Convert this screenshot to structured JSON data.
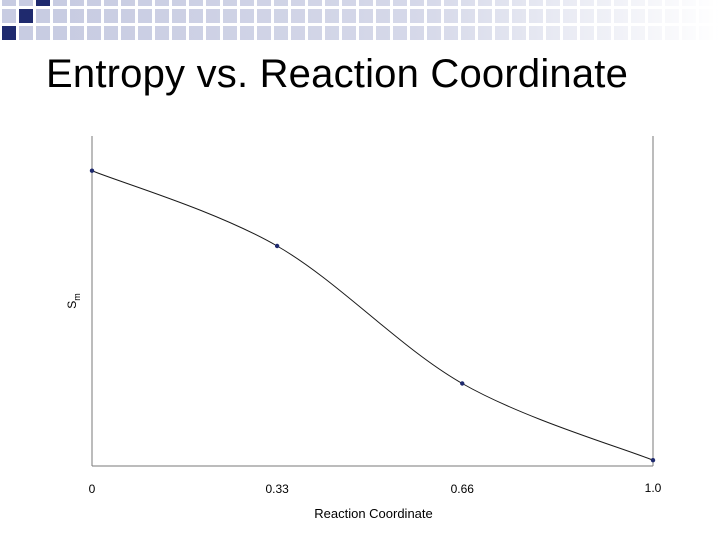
{
  "slide": {
    "title": "Entropy vs. Reaction Coordinate"
  },
  "colors": {
    "accent": "#1f2a6e",
    "grid_light": "#c8cce2",
    "axis": "#7a7a7a",
    "series": "#1a1a1a"
  },
  "chart_data": {
    "type": "line",
    "title": "",
    "xlabel": "Reaction Coordinate",
    "ylabel": "S m",
    "x": [
      0,
      0.33,
      0.66,
      1.0
    ],
    "x_tick_labels": [
      "0",
      "0.33",
      "0.66",
      "1.0"
    ],
    "series": [
      {
        "name": "Entropy",
        "values": [
          100,
          74,
          26.5,
          0
        ]
      }
    ],
    "xlim": [
      0,
      1.0
    ],
    "ylim": [
      -2,
      112
    ],
    "grid": false,
    "smooth": true
  }
}
